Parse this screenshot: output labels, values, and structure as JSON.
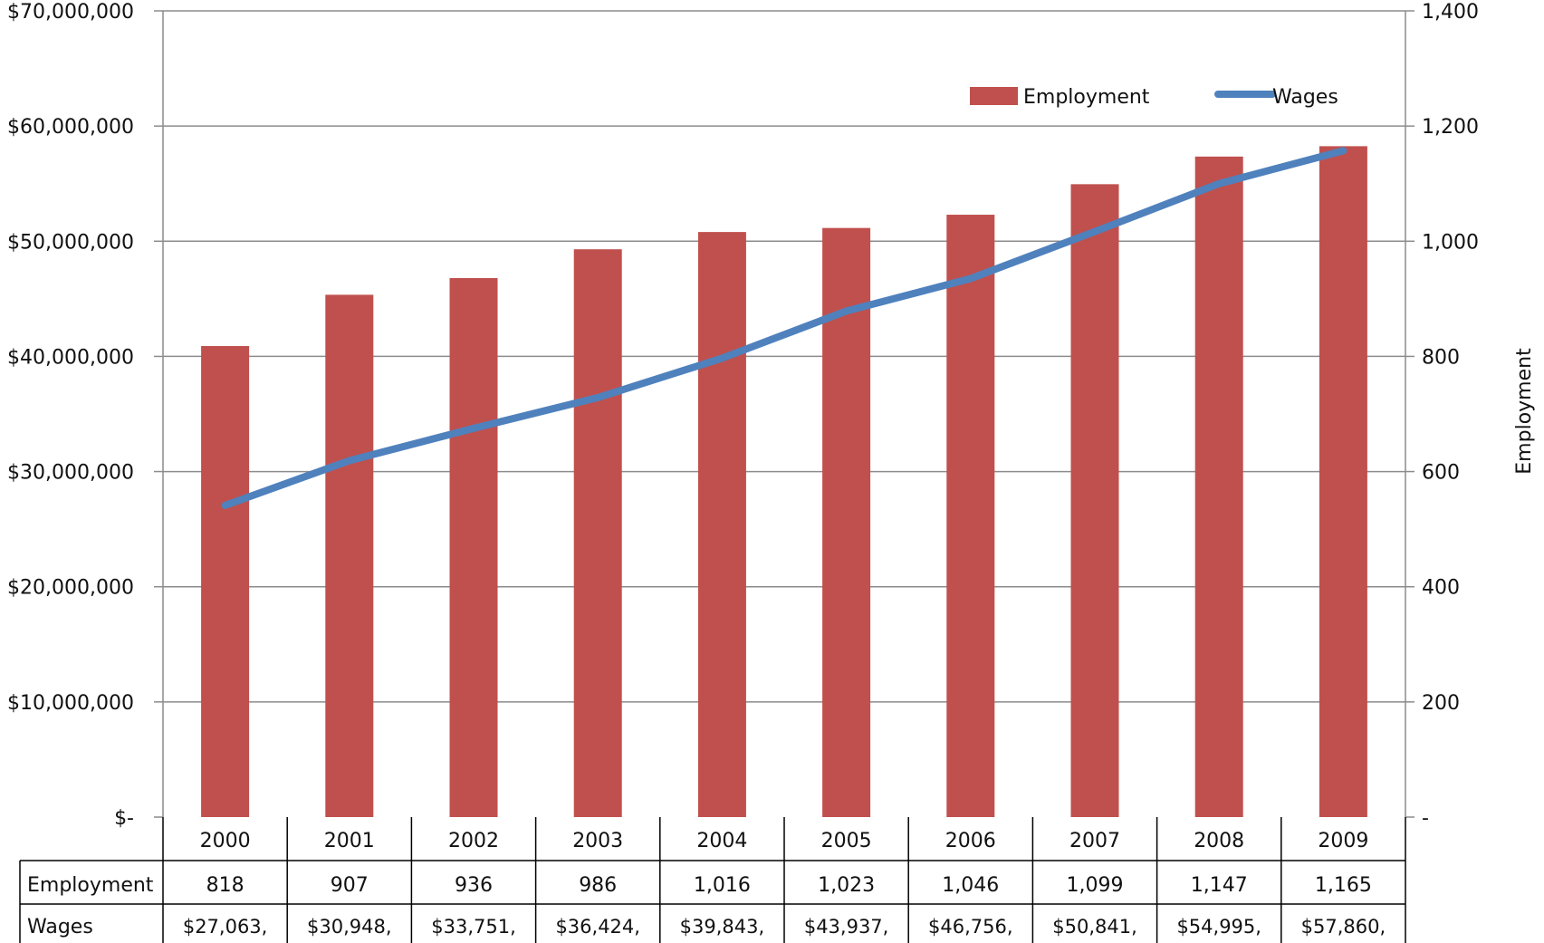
{
  "chart_data": {
    "type": "bar",
    "title": "",
    "categories": [
      "2000",
      "2001",
      "2002",
      "2003",
      "2004",
      "2005",
      "2006",
      "2007",
      "2008",
      "2009"
    ],
    "series": [
      {
        "name": "Employment",
        "type": "bar",
        "axis": "right",
        "color": "#c0504d",
        "values": [
          818,
          907,
          936,
          986,
          1016,
          1023,
          1046,
          1099,
          1147,
          1165
        ],
        "table_values": [
          "818",
          "907",
          "936",
          "986",
          "1,016",
          "1,023",
          "1,046",
          "1,099",
          "1,147",
          "1,165"
        ]
      },
      {
        "name": "Wages",
        "type": "line",
        "axis": "left",
        "color": "#4f81bd",
        "values": [
          27063000,
          30948000,
          33751000,
          36424000,
          39843000,
          43937000,
          46756000,
          50841000,
          54995000,
          57860000
        ],
        "table_values": [
          "$27,063,",
          "$30,948,",
          "$33,751,",
          "$36,424,",
          "$39,843,",
          "$43,937,",
          "$46,756,",
          "$50,841,",
          "$54,995,",
          "$57,860,"
        ]
      }
    ],
    "y_left": {
      "label": "",
      "range": [
        0,
        70000000
      ],
      "ticks": [
        0,
        10000000,
        20000000,
        30000000,
        40000000,
        50000000,
        60000000,
        70000000
      ],
      "tick_labels": [
        "$-",
        "$10,000,000",
        "$20,000,000",
        "$30,000,000",
        "$40,000,000",
        "$50,000,000",
        "$60,000,000",
        "$70,000,000"
      ]
    },
    "y_right": {
      "label": "Employment",
      "range": [
        0,
        1400
      ],
      "ticks": [
        0,
        200,
        400,
        600,
        800,
        1000,
        1200,
        1400
      ],
      "tick_labels": [
        "-",
        "200",
        "400",
        "600",
        "800",
        "1,000",
        "1,200",
        "1,400"
      ]
    },
    "grid": true,
    "legend": {
      "placement": "top-right",
      "items": [
        "Employment",
        "Wages"
      ]
    },
    "data_table": {
      "row_headers": [
        "Employment",
        "Wages"
      ]
    }
  }
}
